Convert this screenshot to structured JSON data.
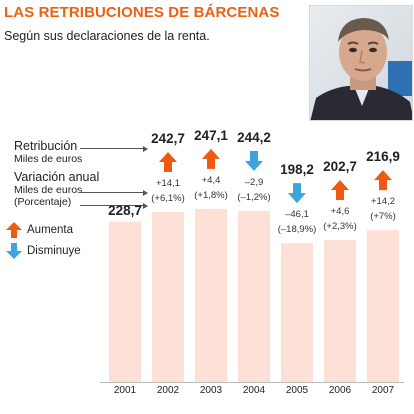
{
  "header": {
    "title": "LAS RETRIBUCIONES DE BÁRCENAS",
    "subtitle": "Según sus declaraciones de la renta."
  },
  "labels": {
    "retribucion": "Retribución",
    "retribucion_unit": "Miles de euros",
    "variacion": "Variación anual",
    "variacion_unit": "Miles de euros",
    "variacion_pct": "(Porcentaje)"
  },
  "legend": {
    "up": "Aumenta",
    "down": "Disminuye"
  },
  "colors": {
    "accent": "#ee6011",
    "increase": "#ee5a12",
    "decrease": "#3aa6dd",
    "bar": "#fde1d6"
  },
  "chart_data": {
    "type": "bar",
    "categories": [
      "2001",
      "2002",
      "2003",
      "2004",
      "2005",
      "2006",
      "2007"
    ],
    "values": [
      228.7,
      242.7,
      247.1,
      244.2,
      198.2,
      202.7,
      216.9
    ],
    "value_labels": [
      "228,7",
      "242,7",
      "247,1",
      "244,2",
      "198,2",
      "202,7",
      "216,9"
    ],
    "change": [
      null,
      "up",
      "up",
      "down",
      "down",
      "up",
      "up"
    ],
    "change_abs": [
      "",
      "+14,1",
      "+4,4",
      "–2,9",
      "–46,1",
      "+4,6",
      "+14,2"
    ],
    "change_pct": [
      "",
      "(+6,1%)",
      "(+1,8%)",
      "(–1,2%)",
      "(–18,9%)",
      "(+2,3%)",
      "(+7%)"
    ],
    "ylim": [
      0,
      250
    ]
  }
}
